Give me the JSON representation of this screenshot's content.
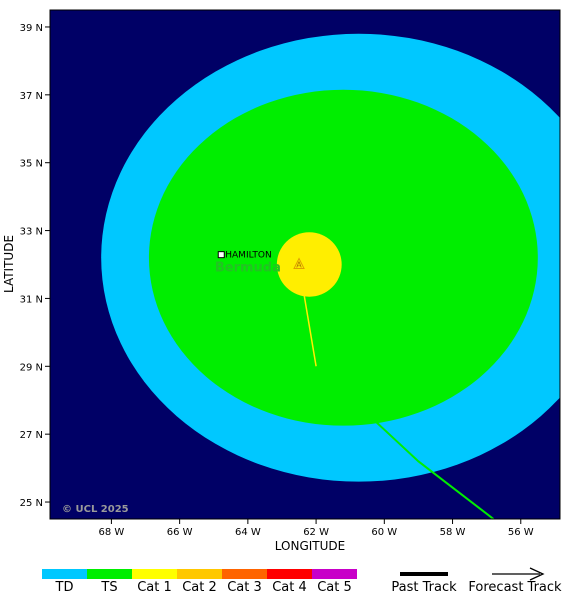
{
  "axes": {
    "xlabel": "LONGITUDE",
    "ylabel": "LATITUDE",
    "x_ticks": [
      {
        "value": -68,
        "label": "68 W"
      },
      {
        "value": -66,
        "label": "66 W"
      },
      {
        "value": -64,
        "label": "64 W"
      },
      {
        "value": -62,
        "label": "62 W"
      },
      {
        "value": -60,
        "label": "60 W"
      },
      {
        "value": -58,
        "label": "58 W"
      },
      {
        "value": -56,
        "label": "56 W"
      }
    ],
    "y_ticks": [
      {
        "value": 25,
        "label": "25 N"
      },
      {
        "value": 27,
        "label": "27 N"
      },
      {
        "value": 29,
        "label": "29 N"
      },
      {
        "value": 31,
        "label": "31 N"
      },
      {
        "value": 33,
        "label": "33 N"
      },
      {
        "value": 35,
        "label": "35 N"
      },
      {
        "value": 37,
        "label": "37 N"
      },
      {
        "value": 39,
        "label": "39 N"
      }
    ],
    "lon_range": [
      -69.8,
      -54.85
    ],
    "lat_range": [
      24.5,
      39.5
    ]
  },
  "colors": {
    "ocean": "#000066",
    "past_track_ts": "#00ee00",
    "past_track_cat1": "#ffee00"
  },
  "wind_fields": [
    {
      "category": "TD",
      "color": "#00c8ff",
      "center_lon": -60.75,
      "center_lat": 32.2,
      "rx_deg": 7.55,
      "ry_deg": 6.6
    },
    {
      "category": "TS",
      "color": "#00ee00",
      "center_lon": -61.2,
      "center_lat": 32.2,
      "rx_deg": 5.7,
      "ry_deg": 4.95
    },
    {
      "category": "Cat 1",
      "color": "#ffee00",
      "center_lon": -62.2,
      "center_lat": 32.0,
      "rx_deg": 0.95,
      "ry_deg": 0.95
    }
  ],
  "storm_position": {
    "lon": -62.5,
    "lat": 32.0,
    "symbol": "A"
  },
  "tracks": {
    "past_cat1": [
      [
        -62.5,
        32.0
      ],
      [
        -62.0,
        29.0
      ]
    ],
    "past_ts": [
      [
        -62.0,
        29.0
      ],
      [
        -59.0,
        26.2
      ],
      [
        -56.8,
        24.5
      ]
    ]
  },
  "places": {
    "city": {
      "name": "HAMILTON",
      "lon": -64.78,
      "lat": 32.29
    },
    "island": {
      "name": "Bermuda",
      "lon": -64.0,
      "lat": 31.8
    }
  },
  "copyright": "© UCL 2025",
  "legend": {
    "categories": [
      {
        "label": "TD",
        "color": "#00c8ff"
      },
      {
        "label": "TS",
        "color": "#00ee00"
      },
      {
        "label": "Cat 1",
        "color": "#ffff00"
      },
      {
        "label": "Cat 2",
        "color": "#ffc800"
      },
      {
        "label": "Cat 3",
        "color": "#ff6400"
      },
      {
        "label": "Cat 4",
        "color": "#ff0000"
      },
      {
        "label": "Cat 5",
        "color": "#c800c8"
      }
    ],
    "past_track_label": "Past Track",
    "forecast_track_label": "Forecast Track"
  }
}
